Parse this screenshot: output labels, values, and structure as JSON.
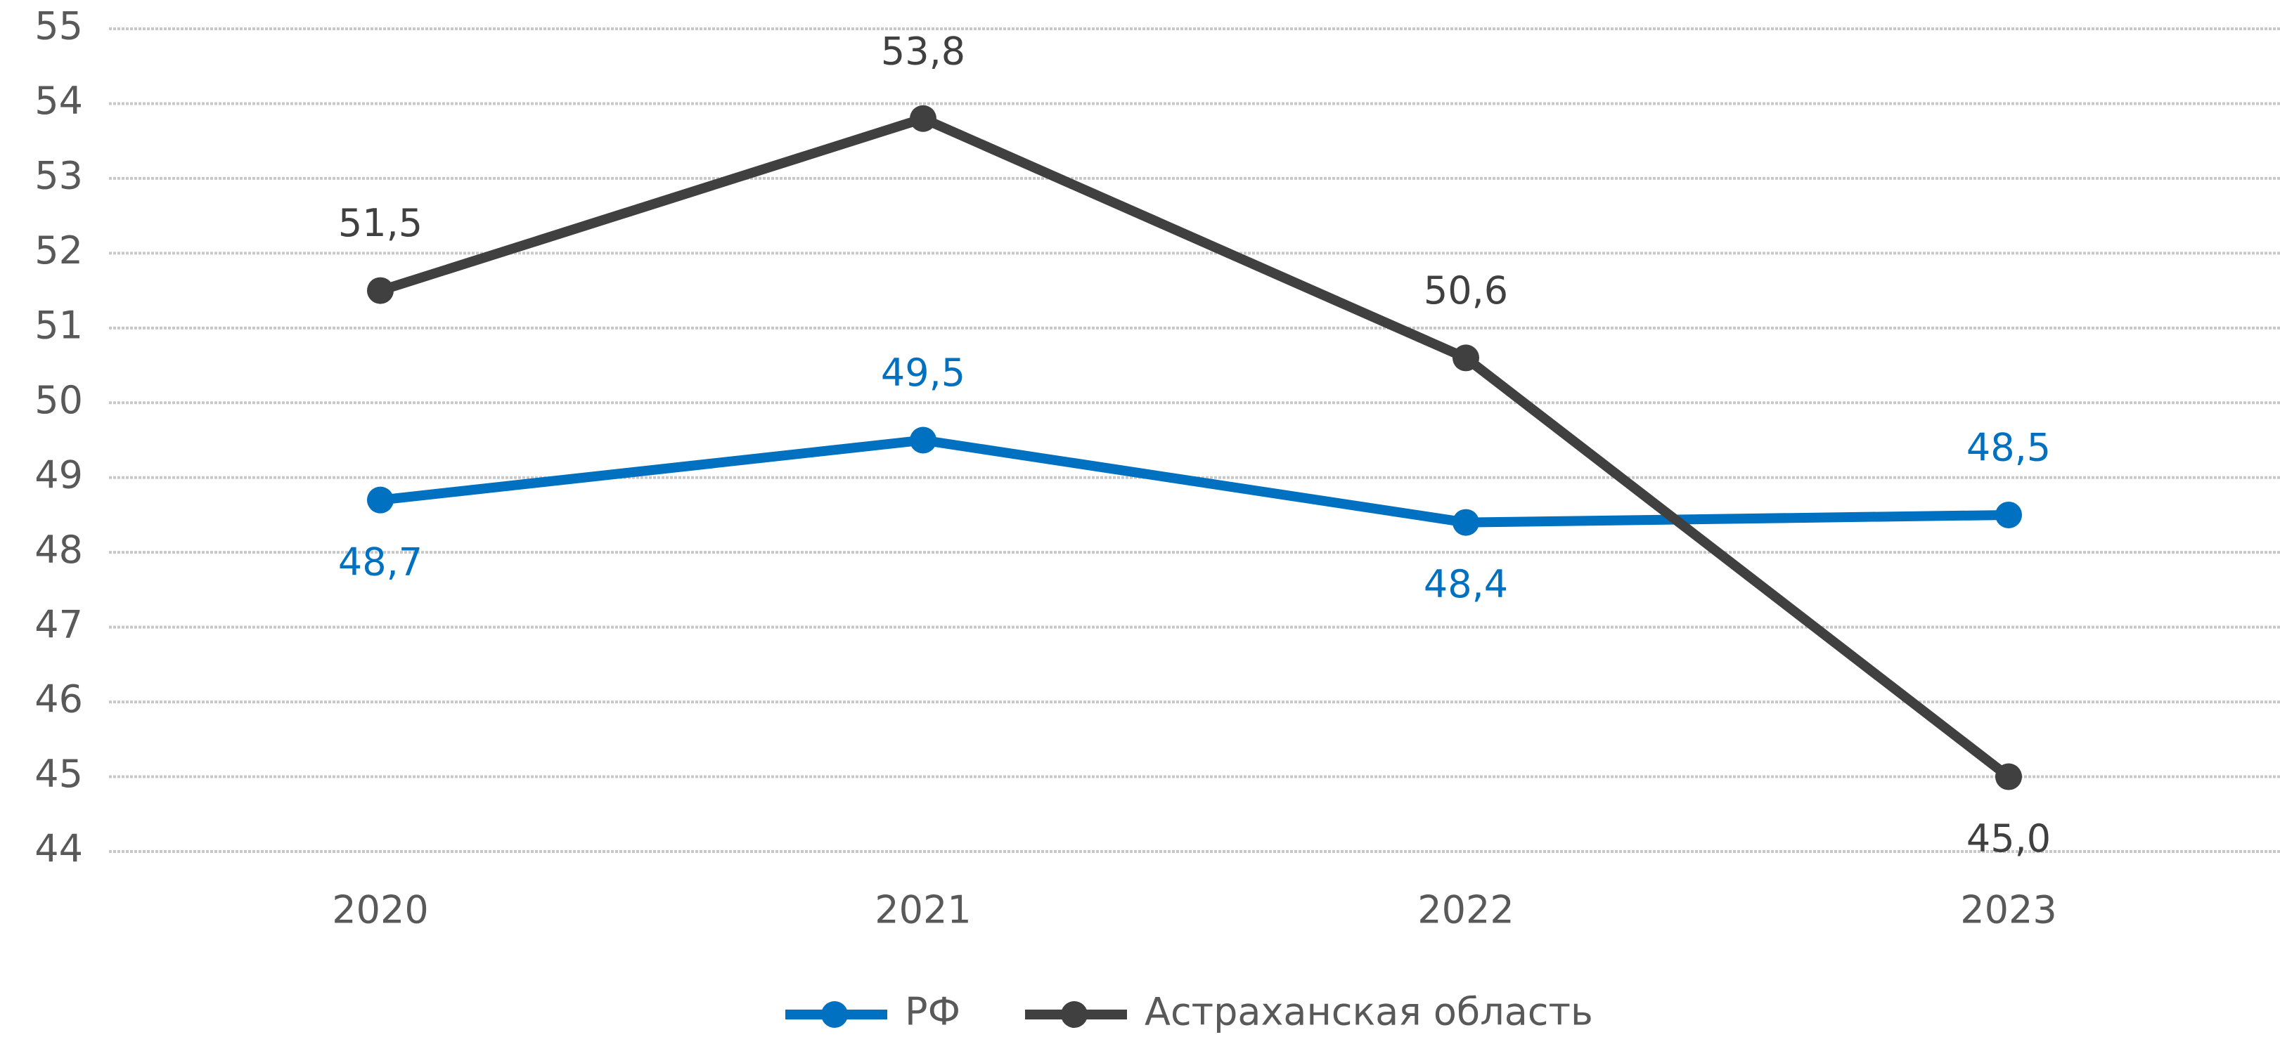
{
  "chart_data": {
    "type": "line",
    "categories": [
      "2020",
      "2021",
      "2022",
      "2023"
    ],
    "series": [
      {
        "name": "РФ",
        "color": "#0070c0",
        "values": [
          48.7,
          49.5,
          48.4,
          48.5
        ],
        "value_labels": [
          "48,7",
          "49,5",
          "48,4",
          "48,5"
        ]
      },
      {
        "name": "Астраханская область",
        "color": "#404040",
        "values": [
          51.5,
          53.8,
          50.6,
          45.0
        ],
        "value_labels": [
          "51,5",
          "53,8",
          "50,6",
          "45,0"
        ]
      }
    ],
    "ylim": [
      44,
      55
    ],
    "yticks": [
      44,
      45,
      46,
      47,
      48,
      49,
      50,
      51,
      52,
      53,
      54,
      55
    ],
    "grid": true
  }
}
